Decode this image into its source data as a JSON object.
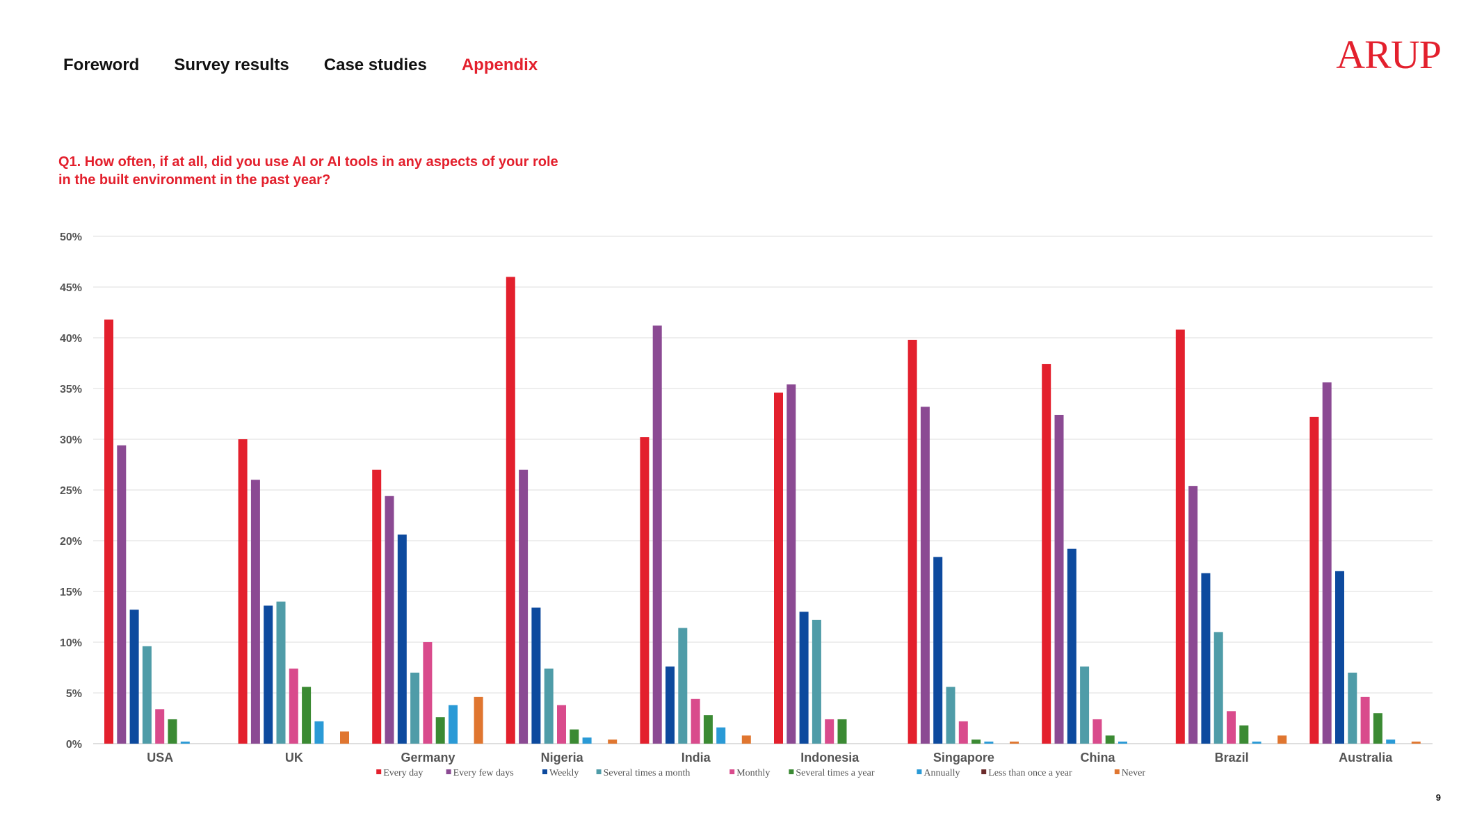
{
  "nav": {
    "items": [
      {
        "label": "Foreword",
        "active": false
      },
      {
        "label": "Survey results",
        "active": false
      },
      {
        "label": "Case studies",
        "active": false
      },
      {
        "label": "Appendix",
        "active": true
      }
    ],
    "active_color": "#e3202d"
  },
  "brand": {
    "logo_text": "ARUP",
    "color": "#e3202d"
  },
  "question": {
    "text": "Q1. How often, if at all, did you use AI or AI tools in any aspects of your role in the built environment in the past year?"
  },
  "page_number": "9",
  "chart_data": {
    "type": "bar",
    "title": "",
    "xlabel": "",
    "ylabel": "",
    "ylim": [
      0,
      50
    ],
    "y_ticks": [
      0,
      5,
      10,
      15,
      20,
      25,
      30,
      35,
      40,
      45,
      50
    ],
    "y_tick_labels": [
      "0%",
      "5%",
      "10%",
      "15%",
      "20%",
      "25%",
      "30%",
      "35%",
      "40%",
      "45%",
      "50%"
    ],
    "grid": true,
    "legend_position": "bottom",
    "categories": [
      "USA",
      "UK",
      "Germany",
      "Nigeria",
      "India",
      "Indonesia",
      "Singapore",
      "China",
      "Brazil",
      "Australia"
    ],
    "series": [
      {
        "name": "Every day",
        "color": "#e3202d",
        "values": [
          41.8,
          30.0,
          27.0,
          46.0,
          30.2,
          34.6,
          39.8,
          37.4,
          40.8,
          32.2
        ]
      },
      {
        "name": "Every few days",
        "color": "#8b4a93",
        "values": [
          29.4,
          26.0,
          24.4,
          27.0,
          41.2,
          35.4,
          33.2,
          32.4,
          25.4,
          35.6
        ]
      },
      {
        "name": "Weekly",
        "color": "#0d4a9e",
        "values": [
          13.2,
          13.6,
          20.6,
          13.4,
          7.6,
          13.0,
          18.4,
          19.2,
          16.8,
          17.0
        ]
      },
      {
        "name": "Several times a month",
        "color": "#4f9ca8",
        "values": [
          9.6,
          14.0,
          7.0,
          7.4,
          11.4,
          12.2,
          5.6,
          7.6,
          11.0,
          7.0
        ]
      },
      {
        "name": "Monthly",
        "color": "#d94b8c",
        "values": [
          3.4,
          7.4,
          10.0,
          3.8,
          4.4,
          2.4,
          2.2,
          2.4,
          3.2,
          4.6
        ]
      },
      {
        "name": "Several times a year",
        "color": "#3b8a33",
        "values": [
          2.4,
          5.6,
          2.6,
          1.4,
          2.8,
          2.4,
          0.4,
          0.8,
          1.8,
          3.0
        ]
      },
      {
        "name": "Annually",
        "color": "#2a9ad6",
        "values": [
          0.2,
          2.2,
          3.8,
          0.6,
          1.6,
          0.0,
          0.2,
          0.2,
          0.2,
          0.4
        ]
      },
      {
        "name": "Less than once a year",
        "color": "#6b2b2b",
        "values": [
          0,
          0,
          0,
          0,
          0,
          0,
          0,
          0,
          0,
          0
        ]
      },
      {
        "name": "Never",
        "color": "#e07630",
        "values": [
          0.0,
          1.2,
          4.6,
          0.4,
          0.8,
          0.0,
          0.2,
          0.0,
          0.8,
          0.2
        ]
      }
    ]
  }
}
